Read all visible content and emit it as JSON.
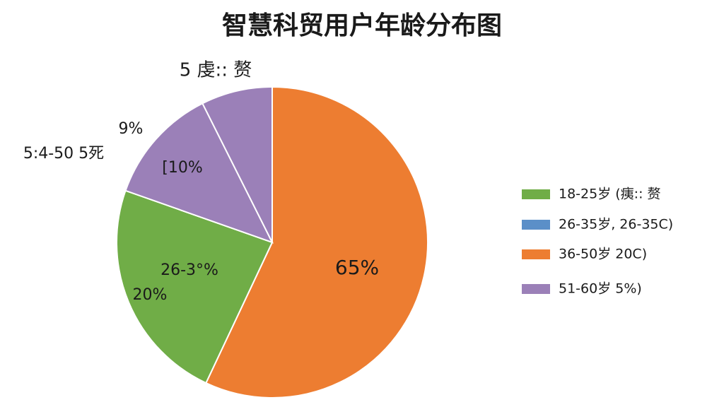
{
  "chart_data": {
    "type": "pie",
    "title": "智慧科贸用户年龄分布图",
    "slices": [
      {
        "color": "#ed7d31",
        "value": 57
      },
      {
        "color": "#70ad47",
        "value": 23.4
      },
      {
        "color": "#9b80b8",
        "value": 12.2
      },
      {
        "color": "#9b80b8",
        "value": 7.4
      }
    ],
    "annotations": [
      "5 虔:: 赘",
      "9%",
      "5:4-50 5死",
      "[10%",
      "26-3°%",
      "20%",
      "65%"
    ],
    "legend": [
      {
        "name": "18-25岁 (痍:: 赘",
        "color": "#70ad47"
      },
      {
        "name": "26-35岁, 26-35C)",
        "color": "#5b8fc8"
      },
      {
        "name": "36-50岁 20C)",
        "color": "#ed7d31"
      },
      {
        "name": "51-60岁 5%)",
        "color": "#9b80b8"
      }
    ]
  }
}
